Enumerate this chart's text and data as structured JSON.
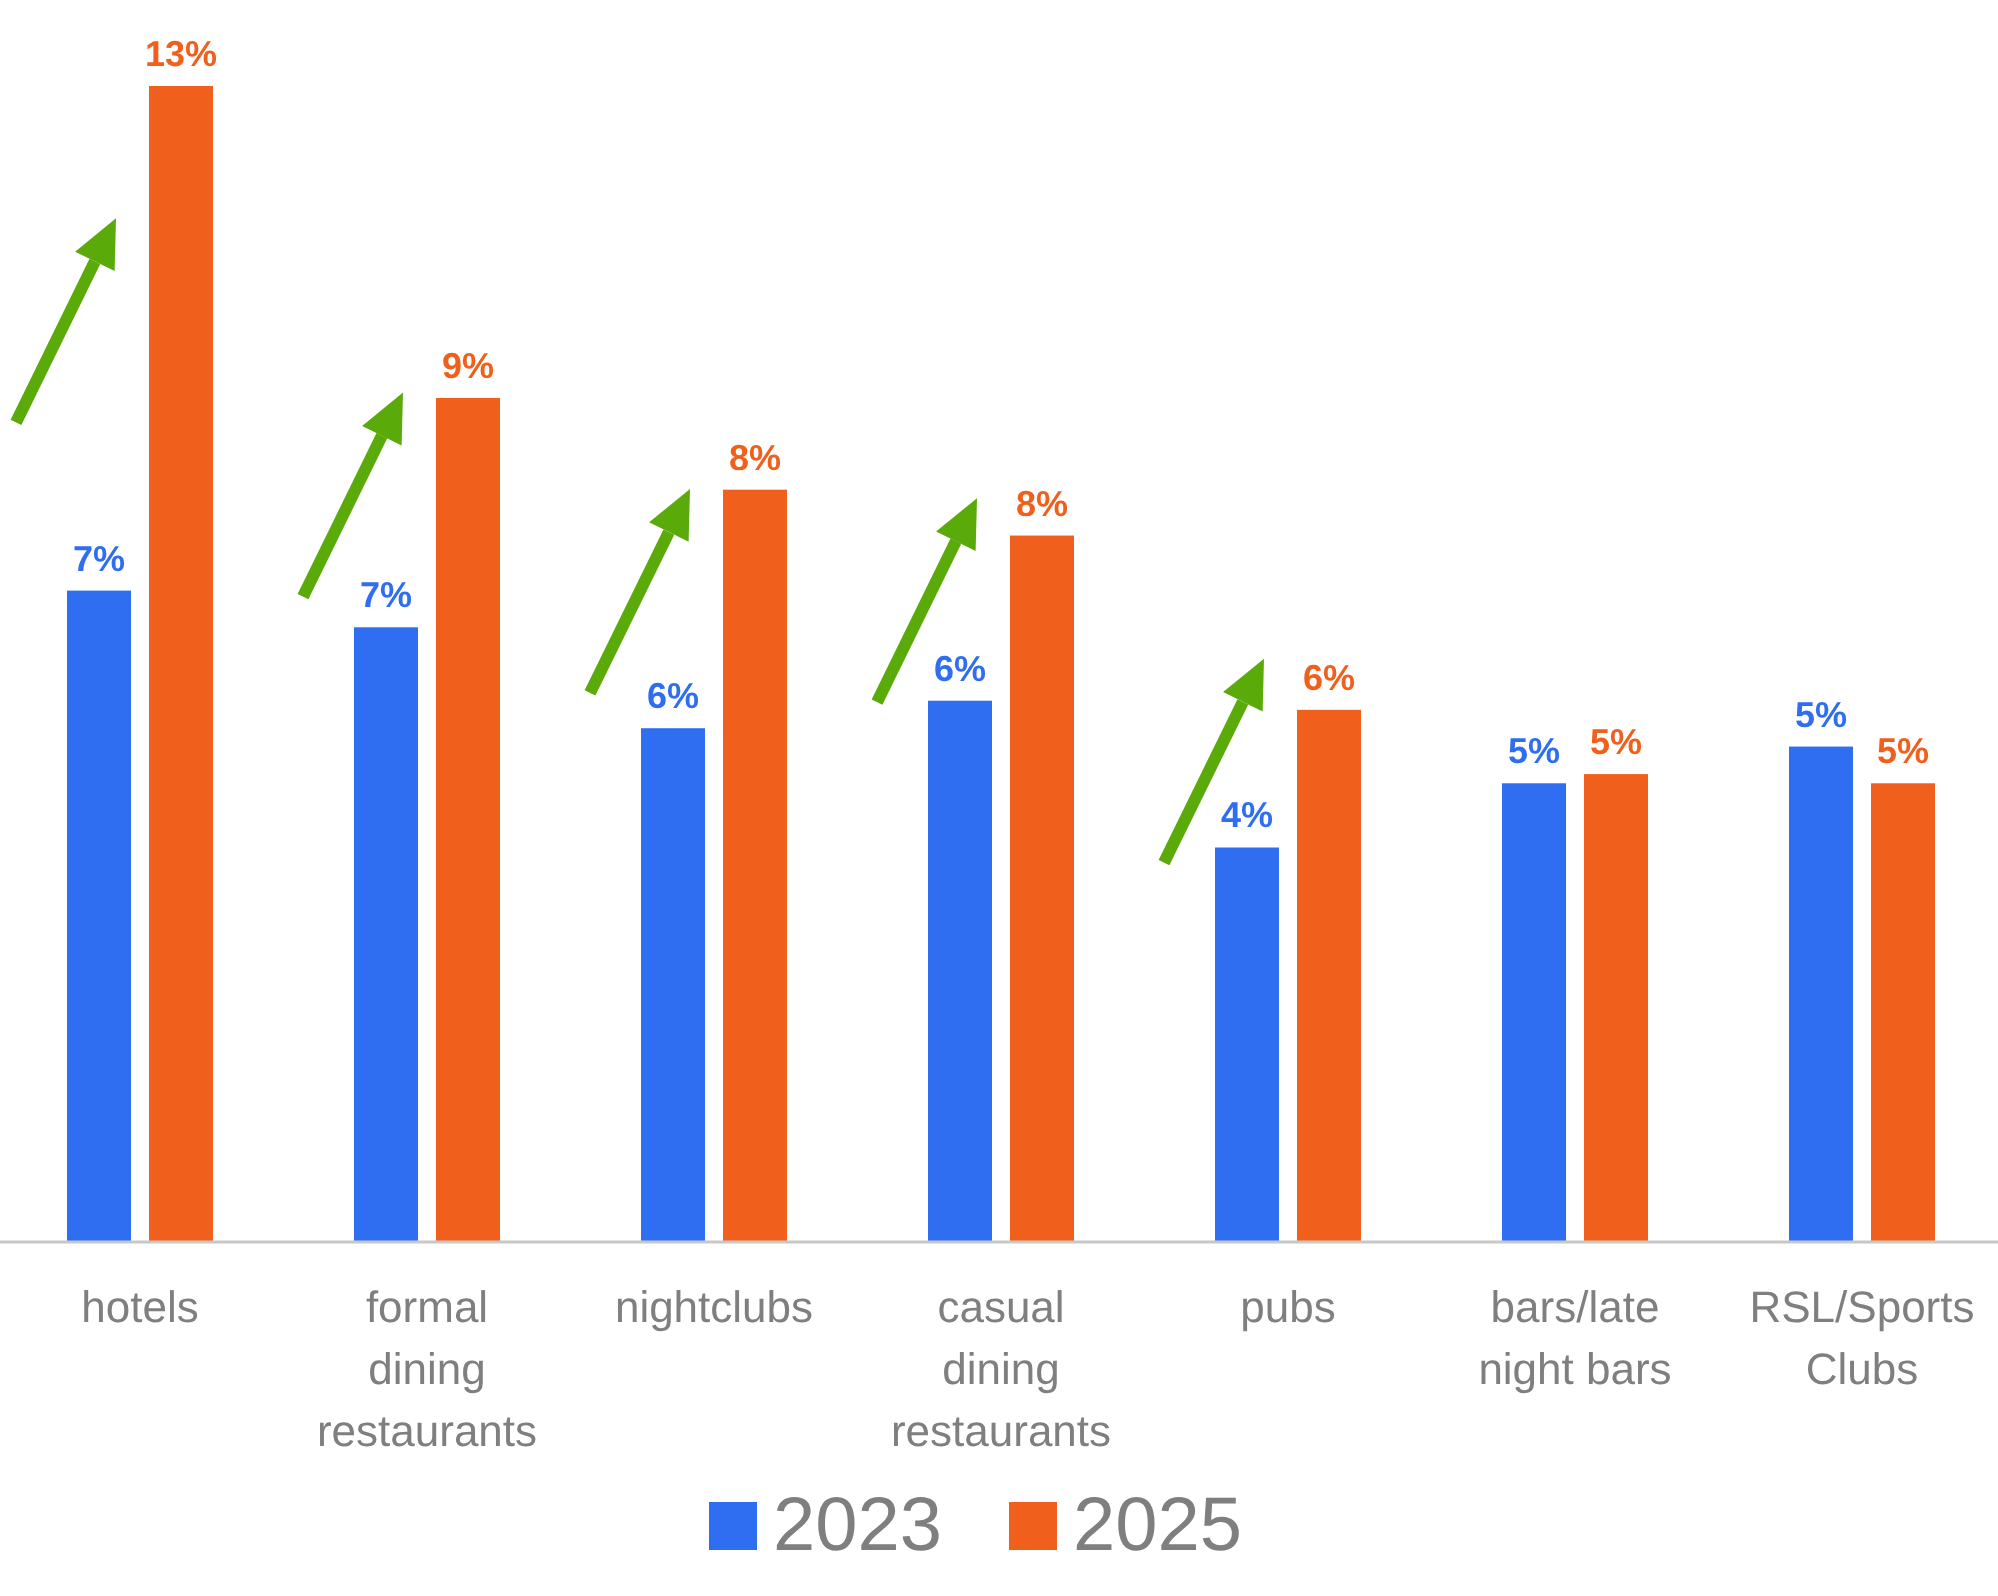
{
  "chart_data": {
    "type": "bar",
    "categories": [
      "hotels",
      "formal dining restaurants",
      "nightclubs",
      "casual dining restaurants",
      "pubs",
      "bars/late night bars",
      "RSL/Sports Clubs"
    ],
    "series": [
      {
        "name": "2023",
        "color": "#2f6ef0",
        "values": [
          7.1,
          6.7,
          5.6,
          5.9,
          4.3,
          5.0,
          5.4
        ],
        "value_labels": [
          "7%",
          "7%",
          "6%",
          "6%",
          "4%",
          "5%",
          "5%"
        ]
      },
      {
        "name": "2025",
        "color": "#f0601c",
        "values": [
          12.6,
          9.2,
          8.2,
          7.7,
          5.8,
          5.1,
          5.0
        ],
        "value_labels": [
          "13%",
          "9%",
          "8%",
          "8%",
          "6%",
          "5%",
          "5%"
        ]
      }
    ],
    "legend": "bottom"
  }
}
